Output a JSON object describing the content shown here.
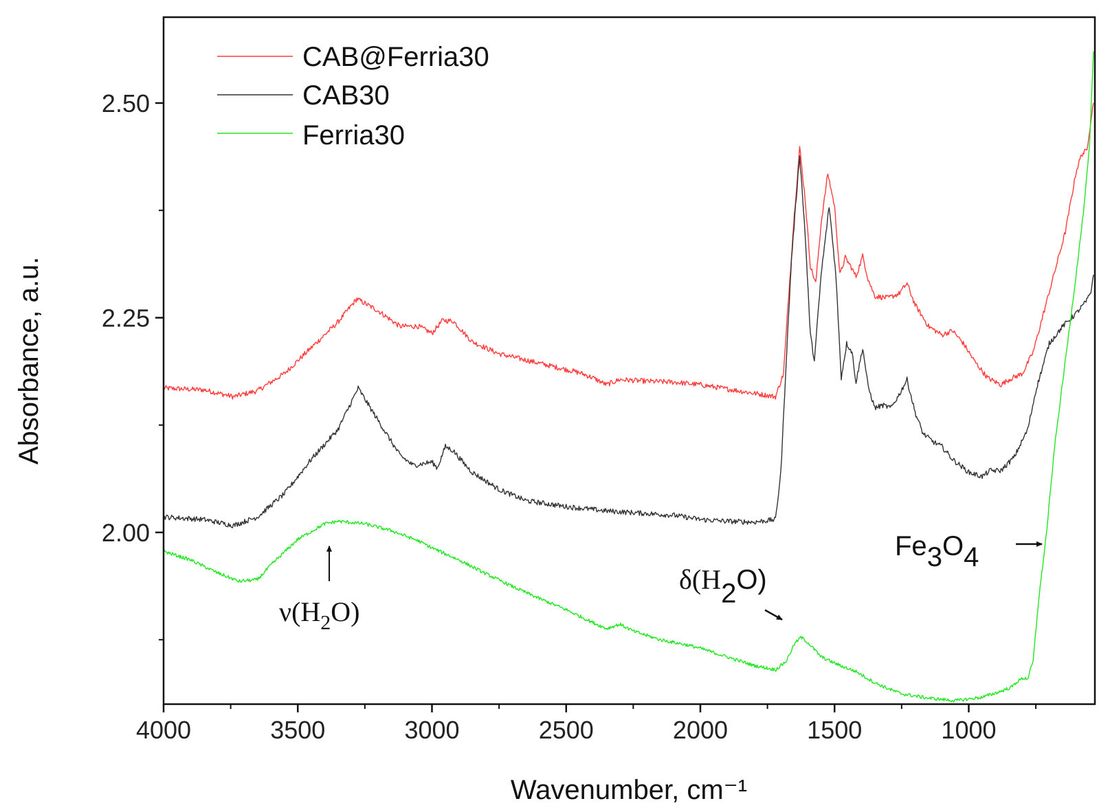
{
  "chart_data": {
    "type": "line",
    "xlabel": "Wavenumber, cm⁻¹",
    "ylabel": "Absorbance, a.u.",
    "xlim": [
      4000,
      530
    ],
    "ylim": [
      1.8,
      2.6
    ],
    "x_ticks": [
      {
        "value": 4000,
        "label": "4000"
      },
      {
        "value": 3500,
        "label": "3500"
      },
      {
        "value": 3000,
        "label": "3000"
      },
      {
        "value": 2500,
        "label": "2500"
      },
      {
        "value": 2000,
        "label": "2000"
      },
      {
        "value": 1500,
        "label": "1500"
      },
      {
        "value": 1000,
        "label": "1000"
      }
    ],
    "y_ticks": [
      {
        "value": 2.0,
        "label": "2.00"
      },
      {
        "value": 2.25,
        "label": "2.25"
      },
      {
        "value": 2.5,
        "label": "2.50"
      }
    ],
    "y_minor_ticks": [
      1.875,
      2.125,
      2.375
    ],
    "x_minor_ticks": [
      3750,
      3250,
      2750,
      2250,
      1750,
      1250,
      750
    ],
    "series": [
      {
        "name": "CAB@Ferria30",
        "color": "#ff3b3b",
        "noise": 0.003,
        "points": [
          [
            4000,
            2.168
          ],
          [
            3850,
            2.166
          ],
          [
            3740,
            2.158
          ],
          [
            3650,
            2.165
          ],
          [
            3550,
            2.185
          ],
          [
            3450,
            2.215
          ],
          [
            3350,
            2.245
          ],
          [
            3280,
            2.272
          ],
          [
            3200,
            2.258
          ],
          [
            3120,
            2.24
          ],
          [
            3050,
            2.24
          ],
          [
            3000,
            2.232
          ],
          [
            2960,
            2.247
          ],
          [
            2920,
            2.246
          ],
          [
            2880,
            2.232
          ],
          [
            2850,
            2.222
          ],
          [
            2750,
            2.208
          ],
          [
            2600,
            2.197
          ],
          [
            2450,
            2.186
          ],
          [
            2400,
            2.18
          ],
          [
            2350,
            2.172
          ],
          [
            2300,
            2.178
          ],
          [
            2200,
            2.176
          ],
          [
            2100,
            2.175
          ],
          [
            2000,
            2.172
          ],
          [
            1900,
            2.167
          ],
          [
            1800,
            2.162
          ],
          [
            1720,
            2.158
          ],
          [
            1690,
            2.185
          ],
          [
            1670,
            2.28
          ],
          [
            1650,
            2.37
          ],
          [
            1630,
            2.448
          ],
          [
            1610,
            2.39
          ],
          [
            1590,
            2.31
          ],
          [
            1570,
            2.29
          ],
          [
            1550,
            2.36
          ],
          [
            1525,
            2.418
          ],
          [
            1500,
            2.38
          ],
          [
            1480,
            2.3
          ],
          [
            1460,
            2.32
          ],
          [
            1440,
            2.31
          ],
          [
            1420,
            2.298
          ],
          [
            1395,
            2.322
          ],
          [
            1375,
            2.295
          ],
          [
            1350,
            2.275
          ],
          [
            1300,
            2.273
          ],
          [
            1260,
            2.278
          ],
          [
            1230,
            2.29
          ],
          [
            1200,
            2.265
          ],
          [
            1150,
            2.24
          ],
          [
            1100,
            2.23
          ],
          [
            1060,
            2.235
          ],
          [
            1020,
            2.22
          ],
          [
            980,
            2.2
          ],
          [
            930,
            2.18
          ],
          [
            880,
            2.172
          ],
          [
            850,
            2.178
          ],
          [
            800,
            2.185
          ],
          [
            760,
            2.21
          ],
          [
            700,
            2.28
          ],
          [
            640,
            2.35
          ],
          [
            600,
            2.42
          ],
          [
            580,
            2.44
          ],
          [
            560,
            2.445
          ],
          [
            545,
            2.48
          ],
          [
            535,
            2.5
          ]
        ]
      },
      {
        "name": "CAB30",
        "color": "#333333",
        "noise": 0.003,
        "points": [
          [
            4000,
            2.018
          ],
          [
            3850,
            2.015
          ],
          [
            3740,
            2.008
          ],
          [
            3650,
            2.018
          ],
          [
            3550,
            2.045
          ],
          [
            3450,
            2.085
          ],
          [
            3350,
            2.12
          ],
          [
            3275,
            2.168
          ],
          [
            3200,
            2.13
          ],
          [
            3120,
            2.09
          ],
          [
            3070,
            2.078
          ],
          [
            3000,
            2.082
          ],
          [
            2980,
            2.075
          ],
          [
            2950,
            2.1
          ],
          [
            2920,
            2.095
          ],
          [
            2880,
            2.08
          ],
          [
            2850,
            2.07
          ],
          [
            2750,
            2.05
          ],
          [
            2650,
            2.037
          ],
          [
            2500,
            2.03
          ],
          [
            2350,
            2.025
          ],
          [
            2200,
            2.022
          ],
          [
            2100,
            2.02
          ],
          [
            2000,
            2.015
          ],
          [
            1900,
            2.013
          ],
          [
            1800,
            2.012
          ],
          [
            1720,
            2.015
          ],
          [
            1700,
            2.07
          ],
          [
            1680,
            2.2
          ],
          [
            1660,
            2.32
          ],
          [
            1630,
            2.44
          ],
          [
            1610,
            2.35
          ],
          [
            1590,
            2.23
          ],
          [
            1575,
            2.2
          ],
          [
            1550,
            2.3
          ],
          [
            1520,
            2.38
          ],
          [
            1495,
            2.3
          ],
          [
            1475,
            2.18
          ],
          [
            1455,
            2.22
          ],
          [
            1435,
            2.21
          ],
          [
            1420,
            2.175
          ],
          [
            1395,
            2.215
          ],
          [
            1375,
            2.17
          ],
          [
            1350,
            2.145
          ],
          [
            1320,
            2.148
          ],
          [
            1290,
            2.145
          ],
          [
            1260,
            2.16
          ],
          [
            1230,
            2.178
          ],
          [
            1200,
            2.14
          ],
          [
            1170,
            2.115
          ],
          [
            1130,
            2.105
          ],
          [
            1100,
            2.1
          ],
          [
            1060,
            2.085
          ],
          [
            1000,
            2.07
          ],
          [
            950,
            2.065
          ],
          [
            920,
            2.072
          ],
          [
            880,
            2.072
          ],
          [
            830,
            2.088
          ],
          [
            780,
            2.12
          ],
          [
            750,
            2.165
          ],
          [
            700,
            2.22
          ],
          [
            650,
            2.24
          ],
          [
            600,
            2.255
          ],
          [
            560,
            2.27
          ],
          [
            545,
            2.28
          ],
          [
            535,
            2.3
          ]
        ]
      },
      {
        "name": "Ferria30",
        "color": "#22e622",
        "noise": 0.002,
        "points": [
          [
            4000,
            1.978
          ],
          [
            3900,
            1.968
          ],
          [
            3800,
            1.953
          ],
          [
            3720,
            1.943
          ],
          [
            3650,
            1.945
          ],
          [
            3600,
            1.962
          ],
          [
            3500,
            1.992
          ],
          [
            3400,
            2.01
          ],
          [
            3350,
            2.013
          ],
          [
            3250,
            2.01
          ],
          [
            3150,
            2.002
          ],
          [
            3050,
            1.99
          ],
          [
            3000,
            1.982
          ],
          [
            2900,
            1.968
          ],
          [
            2800,
            1.952
          ],
          [
            2700,
            1.937
          ],
          [
            2600,
            1.923
          ],
          [
            2500,
            1.91
          ],
          [
            2400,
            1.895
          ],
          [
            2350,
            1.888
          ],
          [
            2300,
            1.893
          ],
          [
            2250,
            1.885
          ],
          [
            2150,
            1.875
          ],
          [
            2050,
            1.869
          ],
          [
            2000,
            1.865
          ],
          [
            1900,
            1.855
          ],
          [
            1800,
            1.845
          ],
          [
            1720,
            1.84
          ],
          [
            1680,
            1.85
          ],
          [
            1650,
            1.87
          ],
          [
            1625,
            1.878
          ],
          [
            1600,
            1.872
          ],
          [
            1550,
            1.855
          ],
          [
            1480,
            1.845
          ],
          [
            1420,
            1.838
          ],
          [
            1350,
            1.825
          ],
          [
            1300,
            1.818
          ],
          [
            1250,
            1.812
          ],
          [
            1150,
            1.807
          ],
          [
            1050,
            1.804
          ],
          [
            950,
            1.808
          ],
          [
            880,
            1.815
          ],
          [
            840,
            1.82
          ],
          [
            820,
            1.826
          ],
          [
            800,
            1.83
          ],
          [
            780,
            1.83
          ],
          [
            760,
            1.85
          ],
          [
            740,
            1.92
          ],
          [
            710,
            2.0
          ],
          [
            680,
            2.1
          ],
          [
            640,
            2.2
          ],
          [
            600,
            2.3
          ],
          [
            570,
            2.38
          ],
          [
            550,
            2.45
          ],
          [
            535,
            2.56
          ]
        ]
      }
    ],
    "annotations": {
      "nu_prefix": "ν(H",
      "nu_sub": "2",
      "nu_suffix": "O)",
      "delta_prefix": "δ(H",
      "delta_sub": "2",
      "delta_suffix": "O)",
      "fe_base1": "Fe",
      "fe_sub1": "3",
      "fe_base2": "O",
      "fe_sub2": "4"
    }
  }
}
